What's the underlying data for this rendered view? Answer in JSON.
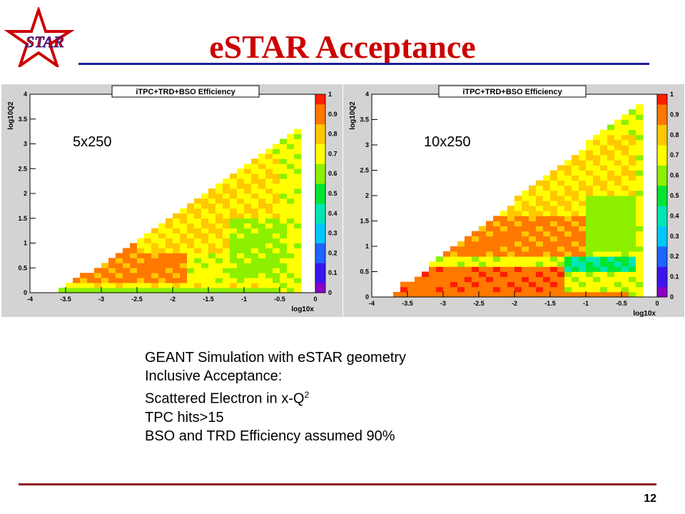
{
  "slide": {
    "title": "eSTAR Acceptance",
    "logo_text": "STAR",
    "page_number": "12",
    "notes": {
      "line1": "GEANT Simulation with eSTAR geometry",
      "line2": "Inclusive Acceptance:",
      "line3": "Scattered Electron in x-Q",
      "line3_sup": "2",
      "line4": "TPC hits>15",
      "line5": "BSO and TRD Efficiency assumed 90%"
    },
    "colors": {
      "title": "#cc0000",
      "title_rule": "#1a1a9a",
      "bottom_rule": "#8b1a1a"
    }
  },
  "chart_data": [
    {
      "type": "heatmap",
      "title": "iTPC+TRD+BSO Efficiency",
      "annotation": "5x250",
      "xlabel": "log10x",
      "ylabel": "log10Q2",
      "xlim": [
        -4,
        0
      ],
      "ylim": [
        0,
        4
      ],
      "zlim": [
        0,
        1
      ],
      "x_ticks": [
        "-4",
        "-3.5",
        "-3",
        "-2.5",
        "-2",
        "-1.5",
        "-1",
        "-0.5",
        "0"
      ],
      "y_ticks": [
        "0",
        "0.5",
        "1",
        "1.5",
        "2",
        "2.5",
        "3",
        "3.5",
        "4"
      ],
      "z_ticks": [
        "0",
        "0.1",
        "0.2",
        "0.3",
        "0.4",
        "0.5",
        "0.6",
        "0.7",
        "0.8",
        "0.9",
        "1"
      ],
      "acceptance_boundary": [
        [
          -3.7,
          0
        ],
        [
          -3,
          0.55
        ],
        [
          -2,
          1.5
        ],
        [
          -1,
          2.55
        ],
        [
          -0.3,
          3.3
        ],
        [
          -0.2,
          3.3
        ]
      ],
      "bands": [
        {
          "x_range": [
            -3.7,
            -0.5
          ],
          "q2_range": [
            0,
            0.1
          ],
          "value": 0.6
        },
        {
          "x_range": [
            -3.7,
            -0.6
          ],
          "q2_range": [
            0.1,
            0.2
          ],
          "value": 0.72
        },
        {
          "x_range": [
            -3.5,
            -1.8
          ],
          "q2_range": [
            0.2,
            1.0
          ],
          "value": 0.88
        },
        {
          "x_range": [
            -2.5,
            -0.5
          ],
          "q2_range": [
            0.8,
            2.8
          ],
          "value": 0.75
        },
        {
          "x_range": [
            -1.2,
            -0.4
          ],
          "q2_range": [
            0.3,
            1.5
          ],
          "value": 0.62
        }
      ]
    },
    {
      "type": "heatmap",
      "title": "iTPC+TRD+BSO Efficiency",
      "annotation": "10x250",
      "xlabel": "log10x",
      "ylabel": "log10Q2",
      "xlim": [
        -4,
        0
      ],
      "ylim": [
        0,
        4
      ],
      "zlim": [
        0,
        1
      ],
      "x_ticks": [
        "-4",
        "-3.5",
        "-3",
        "-2.5",
        "-2",
        "-1.5",
        "-1",
        "-0.5",
        "0"
      ],
      "y_ticks": [
        "0",
        "0.5",
        "1",
        "1.5",
        "2",
        "2.5",
        "3",
        "3.5",
        "4"
      ],
      "z_ticks": [
        "0",
        "0.1",
        "0.2",
        "0.3",
        "0.4",
        "0.5",
        "0.6",
        "0.7",
        "0.8",
        "0.9",
        "1"
      ],
      "acceptance_boundary": [
        [
          -3.8,
          0
        ],
        [
          -3,
          0.8
        ],
        [
          -2,
          1.9
        ],
        [
          -1,
          3.0
        ],
        [
          -0.5,
          3.5
        ],
        [
          -0.2,
          3.8
        ]
      ],
      "bands": [
        {
          "x_range": [
            -3.8,
            -0.4
          ],
          "q2_range": [
            0,
            0.1
          ],
          "value": 0.9
        },
        {
          "x_range": [
            -3.6,
            -1.3
          ],
          "q2_range": [
            0.1,
            0.55
          ],
          "value": 0.92
        },
        {
          "x_range": [
            -1.3,
            -0.3
          ],
          "q2_range": [
            0.5,
            0.8
          ],
          "value": 0.45
        },
        {
          "x_range": [
            -3,
            -1.0
          ],
          "q2_range": [
            0.8,
            1.6
          ],
          "value": 0.88
        },
        {
          "x_range": [
            -2.5,
            -0.3
          ],
          "q2_range": [
            1.6,
            3.2
          ],
          "value": 0.75
        },
        {
          "x_range": [
            -1,
            -0.3
          ],
          "q2_range": [
            0.9,
            2.0
          ],
          "value": 0.6
        }
      ]
    }
  ]
}
